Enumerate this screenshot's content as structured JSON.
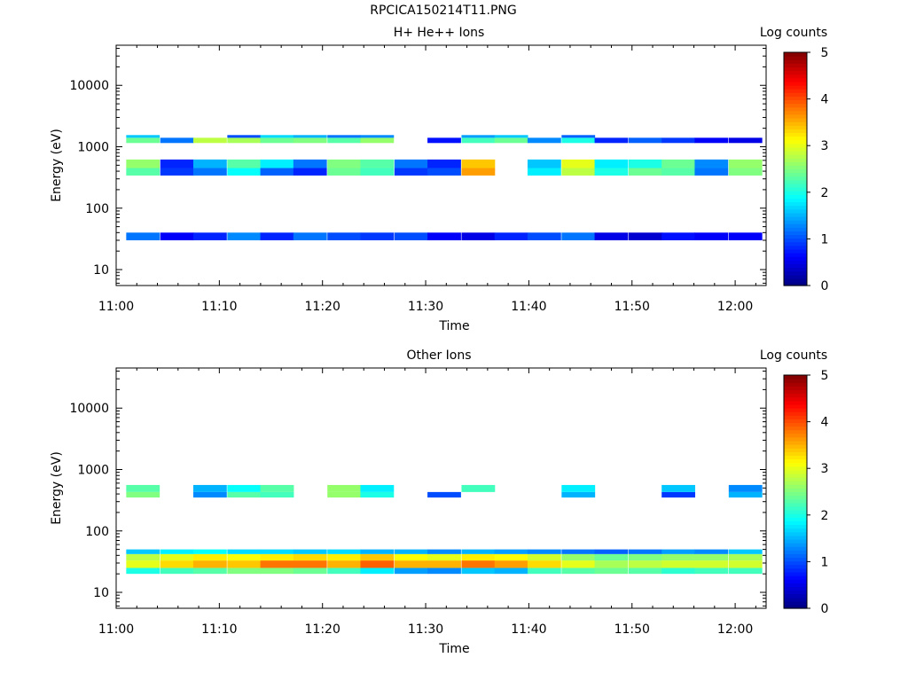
{
  "figure_title": "RPCICA150214T11.PNG",
  "colorbar": {
    "label": "Log counts",
    "ticks": [
      "0",
      "1",
      "2",
      "3",
      "4",
      "5"
    ]
  },
  "chart_data": [
    {
      "type": "heatmap",
      "title": "H+ He++ Ions",
      "xlabel": "Time",
      "ylabel": "Energy (eV)",
      "x_ticks": [
        "11:00",
        "11:10",
        "11:20",
        "11:30",
        "11:40",
        "11:50",
        "12:00"
      ],
      "y_ticks": [
        "10",
        "100",
        "1000",
        "10000"
      ],
      "y_scale": "log",
      "ylim": [
        5.5,
        45000
      ],
      "xlim_minutes": [
        0,
        63
      ],
      "clim": [
        0,
        5
      ],
      "time_bins_minutes": [
        2.6,
        5.9,
        9.1,
        12.4,
        15.6,
        18.8,
        22.1,
        25.3,
        28.6,
        31.8,
        35.1,
        38.3,
        41.5,
        44.8,
        48.0,
        51.3,
        54.5,
        57.7,
        61.0
      ],
      "energy_bands": [
        {
          "e": [
            30,
            40
          ],
          "v": [
            1.2,
            0.6,
            0.8,
            1.3,
            0.8,
            1.2,
            1.0,
            0.9,
            1.0,
            0.6,
            0.5,
            0.8,
            1.0,
            1.2,
            0.5,
            0.4,
            0.7,
            0.6,
            0.6
          ]
        },
        {
          "e": [
            340,
            450
          ],
          "v": [
            2.3,
            0.9,
            1.2,
            1.9,
            1.1,
            0.8,
            2.4,
            2.2,
            0.9,
            1.0,
            3.6,
            0.0,
            1.8,
            2.8,
            2.0,
            2.4,
            2.3,
            1.2,
            2.5
          ]
        },
        {
          "e": [
            450,
            620
          ],
          "v": [
            2.6,
            0.8,
            1.5,
            2.3,
            1.8,
            1.2,
            2.5,
            2.3,
            1.2,
            0.8,
            3.4,
            0.0,
            1.6,
            3.0,
            1.8,
            2.0,
            2.4,
            1.3,
            2.6
          ]
        },
        {
          "e": [
            1150,
            1400
          ],
          "v": [
            2.4,
            1.2,
            2.8,
            2.7,
            2.4,
            2.5,
            2.3,
            2.6,
            0.0,
            0.7,
            2.2,
            2.4,
            1.3,
            2.0,
            0.8,
            1.1,
            0.9,
            0.6,
            0.5
          ]
        },
        {
          "e": [
            1400,
            1550
          ],
          "v": [
            1.6,
            0.0,
            0.0,
            1.0,
            1.7,
            1.5,
            1.2,
            1.3,
            0.0,
            0.0,
            1.4,
            1.6,
            0.0,
            1.1,
            0.0,
            0.0,
            0.0,
            0.0,
            0.0
          ]
        }
      ]
    },
    {
      "type": "heatmap",
      "title": "Other Ions",
      "xlabel": "Time",
      "ylabel": "Energy (eV)",
      "x_ticks": [
        "11:00",
        "11:10",
        "11:20",
        "11:30",
        "11:40",
        "11:50",
        "12:00"
      ],
      "y_ticks": [
        "10",
        "100",
        "1000",
        "10000"
      ],
      "y_scale": "log",
      "ylim": [
        5.5,
        45000
      ],
      "xlim_minutes": [
        0,
        63
      ],
      "clim": [
        0,
        5
      ],
      "time_bins_minutes": [
        2.6,
        5.9,
        9.1,
        12.4,
        15.6,
        18.8,
        22.1,
        25.3,
        28.6,
        31.8,
        35.1,
        38.3,
        41.5,
        44.8,
        48.0,
        51.3,
        54.5,
        57.7,
        61.0
      ],
      "energy_bands": [
        {
          "e": [
            20,
            25
          ],
          "v": [
            2.0,
            2.2,
            2.3,
            2.5,
            2.5,
            2.4,
            2.2,
            1.8,
            1.4,
            1.3,
            1.6,
            1.5,
            2.2,
            2.3,
            2.4,
            2.3,
            2.1,
            2.2,
            2.2
          ]
        },
        {
          "e": [
            25,
            33
          ],
          "v": [
            3.0,
            3.3,
            3.5,
            3.4,
            3.8,
            3.8,
            3.5,
            3.9,
            3.5,
            3.5,
            3.8,
            3.6,
            3.3,
            3.0,
            2.7,
            2.8,
            2.9,
            2.9,
            2.9
          ]
        },
        {
          "e": [
            33,
            42
          ],
          "v": [
            2.8,
            3.0,
            3.2,
            3.1,
            3.2,
            3.3,
            3.2,
            3.4,
            3.1,
            3.0,
            3.2,
            3.1,
            2.9,
            2.6,
            2.4,
            2.5,
            2.6,
            2.6,
            2.7
          ]
        },
        {
          "e": [
            42,
            50
          ],
          "v": [
            1.6,
            1.8,
            1.9,
            1.7,
            1.7,
            1.6,
            1.7,
            1.5,
            1.5,
            1.3,
            1.5,
            1.4,
            1.3,
            1.2,
            1.1,
            1.2,
            1.4,
            1.3,
            1.6
          ]
        },
        {
          "e": [
            350,
            430
          ],
          "v": [
            2.5,
            0.0,
            1.3,
            2.3,
            2.2,
            0.0,
            2.6,
            2.0,
            0.0,
            1.0,
            0.0,
            0.0,
            0.0,
            1.5,
            0.0,
            0.0,
            0.9,
            0.0,
            1.5
          ]
        },
        {
          "e": [
            430,
            560
          ],
          "v": [
            2.3,
            0.0,
            1.5,
            1.9,
            2.3,
            0.0,
            2.6,
            1.8,
            0.0,
            0.0,
            2.2,
            0.0,
            0.0,
            1.8,
            0.0,
            0.0,
            1.6,
            0.0,
            1.3
          ]
        }
      ]
    }
  ]
}
